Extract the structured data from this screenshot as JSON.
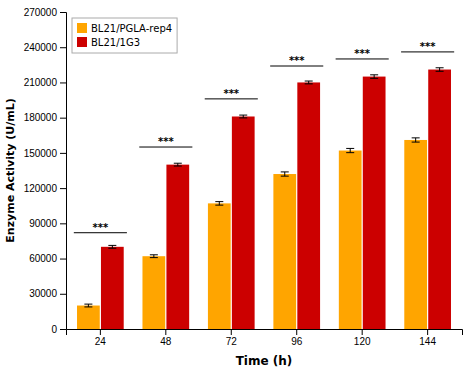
{
  "chart_data": {
    "type": "bar",
    "xlabel": "Time (h)",
    "ylabel": "Enzyme Activity (U/mL)",
    "categories": [
      "24",
      "48",
      "72",
      "96",
      "120",
      "144"
    ],
    "series": [
      {
        "name": "BL21/PGLA-rep4",
        "color": "#FFA500",
        "values": [
          20000,
          62000,
          107000,
          132000,
          152000,
          161000
        ],
        "errors": [
          1200,
          1200,
          1500,
          1800,
          1800,
          1800
        ]
      },
      {
        "name": "BL21/1G3",
        "color": "#CC0000",
        "values": [
          70000,
          140000,
          181000,
          210000,
          215000,
          221000
        ],
        "errors": [
          1200,
          1200,
          1200,
          1200,
          1500,
          1500
        ]
      }
    ],
    "ylim": [
      0,
      270000
    ],
    "yticks": [
      0,
      30000,
      60000,
      90000,
      120000,
      150000,
      180000,
      210000,
      240000,
      270000
    ],
    "annotations": [
      {
        "text": "***",
        "y": 82000
      },
      {
        "text": "***",
        "y": 155000
      },
      {
        "text": "***",
        "y": 196000
      },
      {
        "text": "***",
        "y": 224000
      },
      {
        "text": "***",
        "y": 230000
      },
      {
        "text": "***",
        "y": 236000
      }
    ],
    "grid": false,
    "legend": "upper-left"
  }
}
